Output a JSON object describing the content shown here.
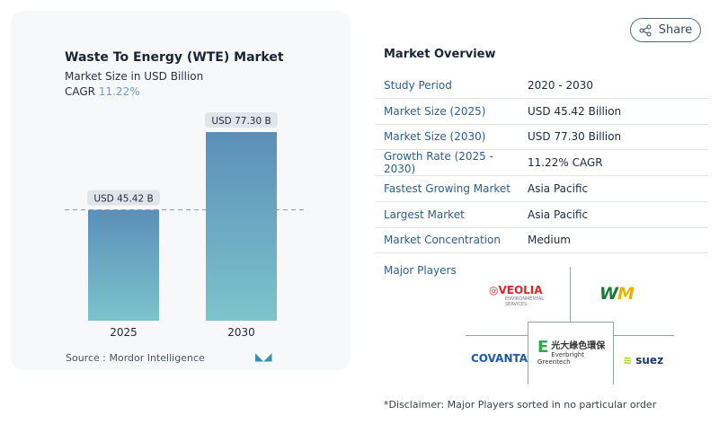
{
  "header": {
    "share_label": "Share",
    "share_icon": "share-icon"
  },
  "chart_card": {
    "title": "Waste To Energy (WTE) Market",
    "subtitle": "Market Size in USD Billion",
    "cagr_label": "CAGR",
    "cagr_value": "11.22%",
    "source": "Source :  Mordor Intelligence",
    "logo_text": "MI"
  },
  "chart_data": {
    "type": "bar",
    "title": "Waste To Energy (WTE) Market",
    "ylabel": "Market Size in USD Billion",
    "categories": [
      "2025",
      "2030"
    ],
    "values": [
      45.42,
      77.3
    ],
    "data_labels": [
      "USD 45.42 B",
      "USD 77.30 B"
    ],
    "colors": {
      "top": "#5b8fb8",
      "bottom": "#7cc3cb"
    },
    "reference_line": 45.42,
    "grid": false
  },
  "overview": {
    "title": "Market Overview",
    "rows": [
      {
        "label": "Study Period",
        "value": "2020 - 2030"
      },
      {
        "label": "Market Size (2025)",
        "value": "USD 45.42 Billion"
      },
      {
        "label": "Market Size (2030)",
        "value": "USD 77.30 Billion"
      },
      {
        "label": "Growth Rate (2025 - 2030)",
        "value": "11.22% CAGR"
      },
      {
        "label": "Fastest Growing Market",
        "value": "Asia Pacific"
      },
      {
        "label": "Largest Market",
        "value": "Asia Pacific"
      },
      {
        "label": "Market Concentration",
        "value": "Medium"
      }
    ]
  },
  "players": {
    "title": "Major Players",
    "logos": [
      "VEOLIA ENVIRONMENTAL SERVICES",
      "WM",
      "COVANTA",
      "光大綠色環保 Everbright Greentech",
      "suez"
    ]
  },
  "disclaimer": "*Disclaimer: Major Players sorted in no particular order"
}
